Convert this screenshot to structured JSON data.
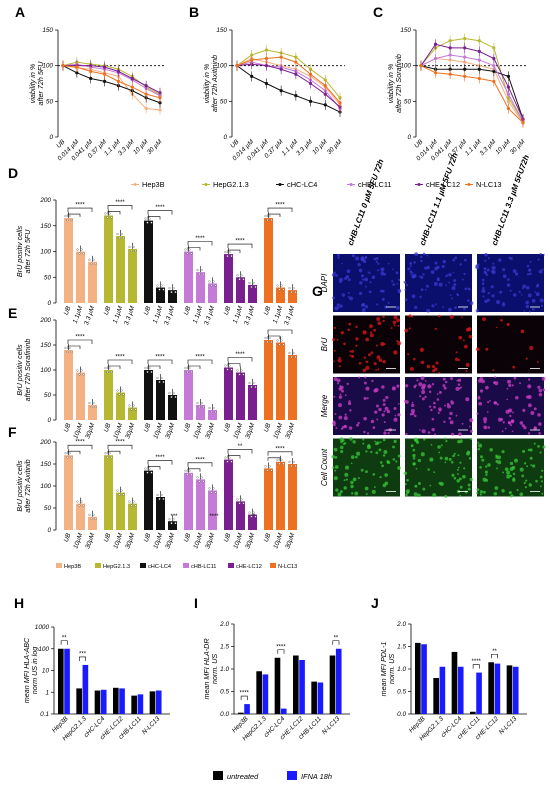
{
  "colors": {
    "Hep3B": "#f4b183",
    "HepG2.1.3": "#b5b830",
    "cHC-LC4": "#111111",
    "cHB-LC11": "#c67ad8",
    "cHE-LC12": "#7a1f8f",
    "N-LC13": "#ee7122",
    "untreated": "#000000",
    "IFNA 18h": "#1a1aff"
  },
  "panels": {
    "A": {
      "label": "A",
      "ylabel_lines": [
        "viability in %",
        "after 72h 5FU"
      ]
    },
    "B": {
      "label": "B",
      "ylabel_lines": [
        "viability in %",
        "after 72h Axitininb"
      ]
    },
    "C": {
      "label": "C",
      "ylabel_lines": [
        "viability in %",
        "after 72h Sorafinib"
      ]
    },
    "D": {
      "label": "D",
      "ylabel_lines": [
        "BrU positiv cells",
        "after 72h 5FU"
      ]
    },
    "E": {
      "label": "E",
      "ylabel_lines": [
        "BrU positiv cells",
        "after 72h Sorafininb"
      ]
    },
    "F": {
      "label": "F",
      "ylabel_lines": [
        "BrU positiv cells",
        "after 72h Axitinib"
      ]
    },
    "G": {
      "label": "G"
    },
    "H": {
      "label": "H",
      "ylabel_lines": [
        "mean MFI HLA-ABC",
        "norm US in log"
      ]
    },
    "I": {
      "label": "I",
      "ylabel_lines": [
        "mean MFI HLA-DR",
        "norm. US"
      ]
    },
    "J": {
      "label": "J",
      "ylabel_lines": [
        "mean MFI PDL-1",
        "norm. US"
      ]
    }
  },
  "legend_main": [
    "Hep3B",
    "HepG2.1.3",
    "cHC-LC4",
    "cHB-LC11",
    "cHE-LC12",
    "N-LC13"
  ],
  "legend_bottom": [
    "untreated",
    "IFNA 18h"
  ],
  "microscopy": {
    "columns": [
      "cHB-LC11 0 µM 5FU 72h",
      "cHB-LC11 1.1 µM 5FU 72h",
      "cHB-LC11 3.3 µM 5FU72h"
    ],
    "rows": [
      "DAPI",
      "BrU",
      "Merge",
      "Cell Count"
    ]
  },
  "chart_data": [
    {
      "panel": "A",
      "type": "line",
      "x": [
        "UB",
        "0.014 µM",
        "0.041 µM",
        "0.37 µM",
        "1.1 µM",
        "3.3 µM",
        "10 µM",
        "30 µM"
      ],
      "ylim": [
        0,
        150
      ],
      "yticks": [
        0,
        50,
        100,
        150
      ],
      "reference_line": 100,
      "series": [
        {
          "name": "Hep3B",
          "values": [
            100,
            97,
            95,
            90,
            85,
            60,
            40,
            38
          ]
        },
        {
          "name": "HepG2.1.3",
          "values": [
            100,
            105,
            102,
            100,
            95,
            85,
            70,
            60
          ]
        },
        {
          "name": "cHC-LC4",
          "values": [
            100,
            90,
            82,
            78,
            72,
            65,
            55,
            48
          ]
        },
        {
          "name": "cHB-LC11",
          "values": [
            100,
            102,
            98,
            95,
            90,
            80,
            68,
            58
          ]
        },
        {
          "name": "cHE-LC12",
          "values": [
            100,
            100,
            100,
            98,
            92,
            82,
            72,
            62
          ]
        },
        {
          "name": "N-LC13",
          "values": [
            100,
            98,
            92,
            88,
            78,
            70,
            60,
            55
          ]
        }
      ]
    },
    {
      "panel": "B",
      "type": "line",
      "x": [
        "UB",
        "0.014 µM",
        "0.041 µM",
        "0.37 µM",
        "1.1 µM",
        "3.3 µM",
        "10 µM",
        "30 µM"
      ],
      "ylim": [
        0,
        150
      ],
      "yticks": [
        0,
        50,
        100,
        150
      ],
      "reference_line": 100,
      "series": [
        {
          "name": "Hep3B",
          "values": [
            100,
            110,
            105,
            100,
            95,
            85,
            70,
            45
          ]
        },
        {
          "name": "HepG2.1.3",
          "values": [
            100,
            115,
            122,
            118,
            112,
            95,
            80,
            55
          ]
        },
        {
          "name": "cHC-LC4",
          "values": [
            100,
            85,
            75,
            65,
            58,
            50,
            45,
            35
          ]
        },
        {
          "name": "cHB-LC11",
          "values": [
            100,
            105,
            100,
            98,
            92,
            80,
            65,
            40
          ]
        },
        {
          "name": "cHE-LC12",
          "values": [
            100,
            102,
            100,
            95,
            88,
            75,
            60,
            42
          ]
        },
        {
          "name": "N-LC13",
          "values": [
            100,
            108,
            110,
            112,
            105,
            88,
            72,
            48
          ]
        }
      ]
    },
    {
      "panel": "C",
      "type": "line",
      "x": [
        "UB",
        "0.014 µM",
        "0.041 µM",
        "0.37 µM",
        "1.1 µM",
        "3.3 µM",
        "10 µM",
        "30 µM"
      ],
      "ylim": [
        0,
        150
      ],
      "yticks": [
        0,
        50,
        100,
        150
      ],
      "reference_line": 100,
      "series": [
        {
          "name": "Hep3B",
          "values": [
            100,
            110,
            108,
            105,
            100,
            95,
            50,
            20
          ]
        },
        {
          "name": "HepG2.1.3",
          "values": [
            100,
            125,
            135,
            138,
            135,
            125,
            55,
            22
          ]
        },
        {
          "name": "cHC-LC4",
          "values": [
            100,
            95,
            95,
            95,
            95,
            92,
            85,
            25
          ]
        },
        {
          "name": "cHB-LC11",
          "values": [
            100,
            110,
            115,
            112,
            108,
            100,
            60,
            22
          ]
        },
        {
          "name": "cHE-LC12",
          "values": [
            100,
            130,
            125,
            125,
            120,
            110,
            70,
            25
          ]
        },
        {
          "name": "N-LC13",
          "values": [
            100,
            90,
            88,
            85,
            82,
            78,
            40,
            20
          ]
        }
      ]
    },
    {
      "panel": "D",
      "type": "bar",
      "ylim": [
        0,
        200
      ],
      "yticks": [
        0,
        50,
        100,
        150,
        200
      ],
      "conditions": [
        "UB",
        "1.1µM",
        "3.3 µM"
      ],
      "groups": [
        {
          "name": "Hep3B",
          "values": [
            165,
            100,
            80
          ]
        },
        {
          "name": "HepG2.1.3",
          "values": [
            170,
            130,
            105
          ]
        },
        {
          "name": "cHC-LC4",
          "values": [
            160,
            30,
            25
          ]
        },
        {
          "name": "cHB-LC11",
          "values": [
            100,
            60,
            38
          ]
        },
        {
          "name": "cHE-LC12",
          "values": [
            95,
            50,
            35
          ]
        },
        {
          "name": "N-LC13",
          "values": [
            165,
            30,
            25
          ]
        }
      ],
      "significance": [
        "****",
        "****",
        "****",
        "****",
        "****",
        "****"
      ]
    },
    {
      "panel": "E",
      "type": "bar",
      "ylim": [
        0,
        200
      ],
      "yticks": [
        0,
        50,
        100,
        150,
        200
      ],
      "conditions": [
        "UB",
        "10µM",
        "30µM"
      ],
      "groups": [
        {
          "name": "Hep3B",
          "values": [
            140,
            95,
            30
          ]
        },
        {
          "name": "HepG2.1.3",
          "values": [
            100,
            55,
            25
          ]
        },
        {
          "name": "cHC-LC4",
          "values": [
            100,
            80,
            50
          ]
        },
        {
          "name": "cHB-LC11",
          "values": [
            100,
            30,
            20
          ]
        },
        {
          "name": "cHE-LC12",
          "values": [
            105,
            95,
            70
          ]
        },
        {
          "name": "N-LC13",
          "values": [
            160,
            155,
            130
          ]
        }
      ],
      "significance": [
        "****",
        "****",
        "****",
        "****",
        "****"
      ]
    },
    {
      "panel": "F",
      "type": "bar",
      "ylim": [
        0,
        200
      ],
      "yticks": [
        0,
        50,
        100,
        150,
        200
      ],
      "conditions": [
        "UB",
        "10µM",
        "30µM"
      ],
      "groups": [
        {
          "name": "Hep3B",
          "values": [
            170,
            60,
            30
          ]
        },
        {
          "name": "HepG2.1.3",
          "values": [
            170,
            85,
            60
          ]
        },
        {
          "name": "cHC-LC4",
          "values": [
            135,
            75,
            20
          ]
        },
        {
          "name": "cHB-LC11",
          "values": [
            130,
            115,
            90
          ]
        },
        {
          "name": "cHE-LC12",
          "values": [
            160,
            65,
            35
          ]
        },
        {
          "name": "N-LC13",
          "values": [
            140,
            155,
            150
          ]
        }
      ],
      "significance": [
        "****",
        "****",
        "****",
        "****",
        "**",
        "****",
        "***",
        "****",
        "*"
      ]
    },
    {
      "panel": "H",
      "type": "bar",
      "scale": "log",
      "ylim": [
        0.1,
        1000
      ],
      "yticks": [
        "0.1",
        "1",
        "10",
        "100",
        "1000"
      ],
      "categories": [
        "Hep3B",
        "HepG2.1.3",
        "cHC-LC4",
        "cHE-LC12",
        "cHB-LC11",
        "N-LC13"
      ],
      "series": [
        {
          "name": "untreated",
          "values": [
            100,
            1.5,
            1.2,
            1.6,
            0.7,
            1.1
          ]
        },
        {
          "name": "IFNA 18h",
          "values": [
            100,
            18,
            1.3,
            1.5,
            0.8,
            1.2
          ]
        }
      ],
      "significance": [
        "**",
        "***"
      ]
    },
    {
      "panel": "I",
      "type": "bar",
      "ylim": [
        0,
        2.0
      ],
      "yticks": [
        "0.0",
        "0.5",
        "1.0",
        "1.5",
        "2.0"
      ],
      "categories": [
        "Hep3B",
        "HepG2.1.3",
        "cHC-LC4",
        "cHE-LC12",
        "cHB-LC11",
        "N-LC13"
      ],
      "series": [
        {
          "name": "untreated",
          "values": [
            0.03,
            0.95,
            1.25,
            1.3,
            0.72,
            1.3
          ]
        },
        {
          "name": "IFNA 18h",
          "values": [
            0.22,
            0.88,
            0.12,
            1.2,
            0.7,
            1.45
          ]
        }
      ],
      "significance": [
        "****",
        "****",
        "**"
      ]
    },
    {
      "panel": "J",
      "type": "bar",
      "ylim": [
        0,
        2.0
      ],
      "yticks": [
        "0.0",
        "0.5",
        "1.0",
        "1.5",
        "2.0"
      ],
      "categories": [
        "Hep3B",
        "HepG2.1.3",
        "cHC-LC4",
        "cHE-LC11",
        "cHE-LC12",
        "N-LC13"
      ],
      "series": [
        {
          "name": "untreated",
          "values": [
            1.58,
            0.8,
            1.38,
            0.05,
            1.15,
            1.08
          ]
        },
        {
          "name": "IFNA 18h",
          "values": [
            1.55,
            1.05,
            1.05,
            0.92,
            1.12,
            1.05
          ]
        }
      ],
      "significance": [
        "****",
        "**"
      ]
    }
  ]
}
